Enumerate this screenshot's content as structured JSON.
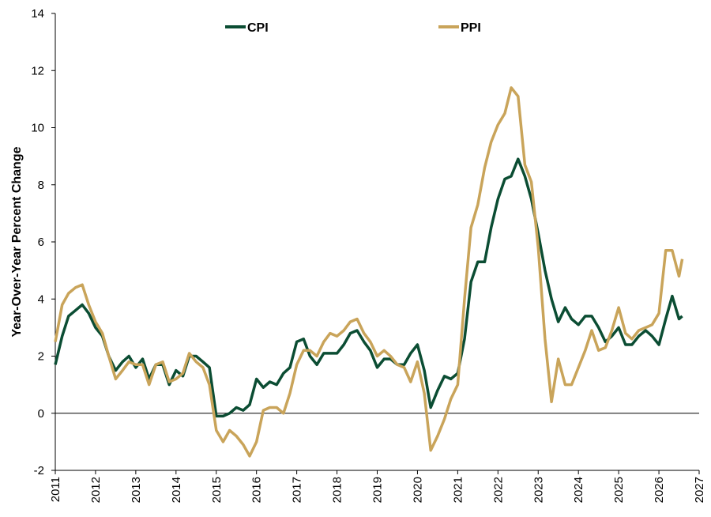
{
  "chart_data": {
    "type": "line",
    "y_label": "Year-Over-Year Percent Change",
    "x": [
      2011,
      2011.17,
      2011.33,
      2011.5,
      2011.67,
      2011.83,
      2012,
      2012.17,
      2012.33,
      2012.5,
      2012.67,
      2012.83,
      2013,
      2013.17,
      2013.33,
      2013.5,
      2013.67,
      2013.83,
      2014,
      2014.17,
      2014.33,
      2014.5,
      2014.67,
      2014.83,
      2015,
      2015.17,
      2015.33,
      2015.5,
      2015.67,
      2015.83,
      2016,
      2016.17,
      2016.33,
      2016.5,
      2016.67,
      2016.83,
      2017,
      2017.17,
      2017.33,
      2017.5,
      2017.67,
      2017.83,
      2018,
      2018.17,
      2018.33,
      2018.5,
      2018.67,
      2018.83,
      2019,
      2019.17,
      2019.33,
      2019.5,
      2019.67,
      2019.83,
      2020,
      2020.17,
      2020.33,
      2020.5,
      2020.67,
      2020.83,
      2021,
      2021.17,
      2021.33,
      2021.5,
      2021.67,
      2021.83,
      2022,
      2022.17,
      2022.33,
      2022.5,
      2022.67,
      2022.83,
      2023,
      2023.17,
      2023.33,
      2023.5,
      2023.67,
      2023.83,
      2024,
      2024.17,
      2024.33,
      2024.5,
      2024.67,
      2024.83,
      2025,
      2025.17,
      2025.33,
      2025.5,
      2025.67,
      2025.83,
      2026,
      2026.17,
      2026.33,
      2026.5,
      2026.58
    ],
    "series": [
      {
        "name": "CPI",
        "color": "#0b4d33",
        "values": [
          1.7,
          2.7,
          3.4,
          3.6,
          3.8,
          3.5,
          3.0,
          2.7,
          2.0,
          1.5,
          1.8,
          2.0,
          1.6,
          1.9,
          1.2,
          1.7,
          1.7,
          1.0,
          1.5,
          1.3,
          2.0,
          2.0,
          1.8,
          1.6,
          -0.1,
          -0.1,
          0.0,
          0.2,
          0.1,
          0.3,
          1.2,
          0.9,
          1.1,
          1.0,
          1.4,
          1.6,
          2.5,
          2.6,
          2.0,
          1.7,
          2.1,
          2.1,
          2.1,
          2.4,
          2.8,
          2.9,
          2.5,
          2.2,
          1.6,
          1.9,
          1.9,
          1.7,
          1.7,
          2.1,
          2.4,
          1.5,
          0.2,
          0.8,
          1.3,
          1.2,
          1.4,
          2.6,
          4.6,
          5.3,
          5.3,
          6.5,
          7.5,
          8.2,
          8.3,
          8.9,
          8.3,
          7.5,
          6.3,
          5.0,
          4.0,
          3.2,
          3.7,
          3.3,
          3.1,
          3.4,
          3.4,
          3.0,
          2.5,
          2.7,
          3.0,
          2.4,
          2.4,
          2.7,
          2.9,
          2.7,
          2.4,
          3.3,
          4.1,
          3.3,
          3.4
        ]
      },
      {
        "name": "PPI",
        "color": "#c9a45a",
        "values": [
          2.5,
          3.8,
          4.2,
          4.4,
          4.5,
          3.8,
          3.2,
          2.8,
          2.0,
          1.2,
          1.5,
          1.8,
          1.7,
          1.7,
          1.0,
          1.7,
          1.8,
          1.1,
          1.2,
          1.4,
          2.1,
          1.8,
          1.6,
          1.0,
          -0.6,
          -1.0,
          -0.6,
          -0.8,
          -1.1,
          -1.5,
          -1.0,
          0.1,
          0.2,
          0.2,
          0.0,
          0.7,
          1.7,
          2.2,
          2.2,
          2.0,
          2.5,
          2.8,
          2.7,
          2.9,
          3.2,
          3.3,
          2.8,
          2.5,
          2.0,
          2.2,
          2.0,
          1.7,
          1.6,
          1.1,
          1.8,
          0.7,
          -1.3,
          -0.8,
          -0.2,
          0.5,
          1.0,
          4.0,
          6.5,
          7.3,
          8.6,
          9.5,
          10.1,
          10.5,
          11.4,
          11.1,
          8.7,
          8.1,
          5.8,
          2.6,
          0.4,
          1.9,
          1.0,
          1.0,
          1.6,
          2.2,
          2.9,
          2.2,
          2.3,
          2.9,
          3.7,
          2.8,
          2.6,
          2.9,
          3.0,
          3.1,
          3.5,
          5.7,
          5.7,
          4.8,
          5.4
        ]
      }
    ],
    "xlim": [
      2011,
      2027
    ],
    "xticks": [
      2011,
      2012,
      2013,
      2014,
      2015,
      2016,
      2017,
      2018,
      2019,
      2020,
      2021,
      2022,
      2023,
      2024,
      2025,
      2026,
      2027
    ],
    "ylim": [
      -2,
      14
    ],
    "yticks": [
      -2,
      0,
      2,
      4,
      6,
      8,
      10,
      12,
      14
    ],
    "legend": "top"
  }
}
